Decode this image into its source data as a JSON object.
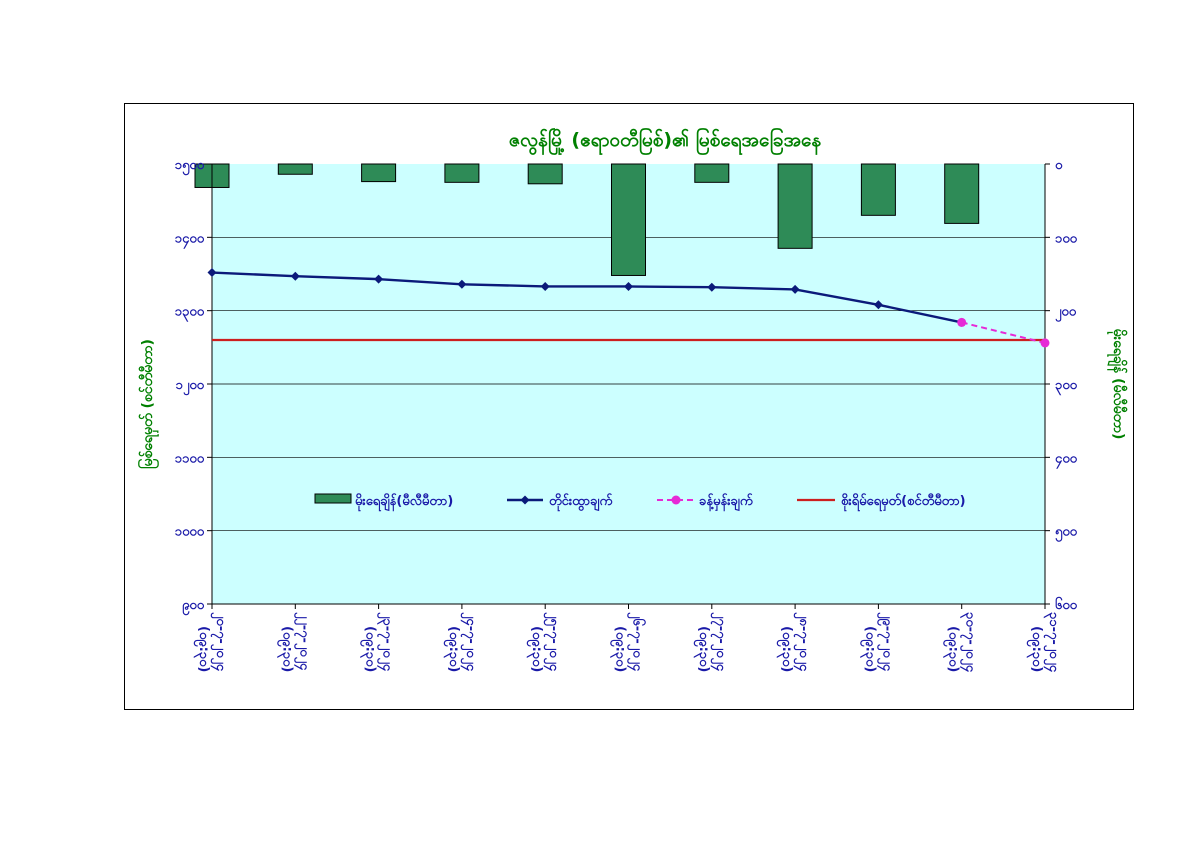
{
  "chart_data": {
    "type": "bar",
    "title": "ဇလွန်မြို့ (ဧရာဝတီမြစ်)၏ မြစ်ရေအခြေအနေ",
    "y_left_label": "မြစ်ရေမှတ် (စင်တီမီတာ)",
    "y_right_label": "မိုးရေချိန် (မီလီမီတာ)",
    "y_left_lim": [
      900,
      1500
    ],
    "y_right_lim": [
      0,
      600
    ],
    "y_right_inverted": true,
    "y_left_ticks": [
      {
        "value": 900,
        "label": "၉၀၀"
      },
      {
        "value": 1000,
        "label": "၁၀၀၀"
      },
      {
        "value": 1100,
        "label": "၁၁၀၀"
      },
      {
        "value": 1200,
        "label": "၁၂၀၀"
      },
      {
        "value": 1300,
        "label": "၁၃၀၀"
      },
      {
        "value": 1400,
        "label": "၁၄၀၀"
      },
      {
        "value": 1500,
        "label": "၁၅၀၀"
      }
    ],
    "y_right_ticks": [
      {
        "value": 0,
        "label": "၀"
      },
      {
        "value": 100,
        "label": "၁၀၀"
      },
      {
        "value": 200,
        "label": "၂၀၀"
      },
      {
        "value": 300,
        "label": "၃၀၀"
      },
      {
        "value": 400,
        "label": "၄၀၀"
      },
      {
        "value": 500,
        "label": "၅၀၀"
      },
      {
        "value": 600,
        "label": "၆၀၀"
      }
    ],
    "categories": [
      {
        "date": "၂၀-၇-၂၀၂၄",
        "time": "(၀၉:၃၀)"
      },
      {
        "date": "၂၂-၇-၂၀၂၄",
        "time": "(၀၉:၃၀)"
      },
      {
        "date": "၂၃-၇-၂၀၂၄",
        "time": "(၀၉:၃၀)"
      },
      {
        "date": "၂၄-၇-၂၀၂၄",
        "time": "(၀၉:၃၀)"
      },
      {
        "date": "၂၅-၇-၂၀၂၄",
        "time": "(၀၉:၃၀)"
      },
      {
        "date": "၂၆-၇-၂၀၂၄",
        "time": "(၀၉:၃၀)"
      },
      {
        "date": "၂၇-၇-၂၀၂၄",
        "time": "(၀၉:၃၀)"
      },
      {
        "date": "၂၈-၇-၂၀၂၄",
        "time": "(၀၉:၃၀)"
      },
      {
        "date": "၂၉-၇-၂၀၂၄",
        "time": "(၀၉:၃၀)"
      },
      {
        "date": "၃၀-၇-၂၀၂၄",
        "time": "(၀၉:၃၀)"
      },
      {
        "date": "၃၁-၇-၂၀၂၄",
        "time": "(၀၉:၃၀)"
      }
    ],
    "series": [
      {
        "name": "မိုးရေချိန်(မီလီမီတာ)",
        "kind": "bar",
        "axis": "right",
        "color": "#2e8b57",
        "values": [
          32,
          14,
          24,
          25,
          27,
          152,
          25,
          115,
          70,
          81,
          null
        ]
      },
      {
        "name": "တိုင်းထွာချက်",
        "kind": "line",
        "axis": "left",
        "color": "#0b1a7a",
        "values": [
          1352,
          1347,
          1343,
          1336,
          1333,
          1333,
          1332,
          1329,
          1308,
          1284,
          null
        ]
      },
      {
        "name": "ခန့်မှန်းချက်",
        "kind": "dashed-line",
        "axis": "left",
        "color": "#e62ad6",
        "values": [
          null,
          null,
          null,
          null,
          null,
          null,
          null,
          null,
          null,
          1284,
          1256
        ]
      },
      {
        "name": "စိုးရိမ်ရေမှတ်(စင်တီမီတာ)",
        "kind": "hline",
        "axis": "left",
        "color": "#cc1f1f",
        "value": 1260
      }
    ],
    "legend_position": "center",
    "grid": true,
    "plot_background": "#ccffff"
  }
}
